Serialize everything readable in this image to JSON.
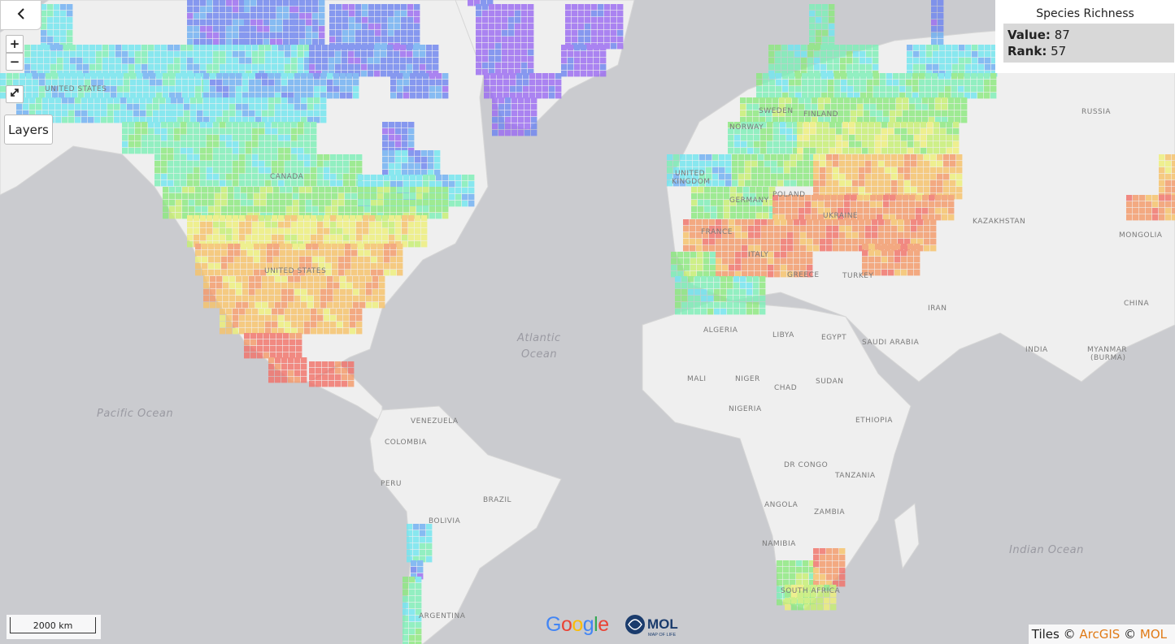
{
  "controls": {
    "back_icon": "chevron-left-icon",
    "zoom_in_label": "+",
    "zoom_out_label": "−",
    "fullscreen_icon": "expand-icon",
    "layers_label": "Layers"
  },
  "info": {
    "title": "Species Richness",
    "value_label": "Value:",
    "value": "87",
    "rank_label": "Rank:",
    "rank": "57"
  },
  "scale_label": "2000 km",
  "attribution": {
    "prefix": "Tiles ©",
    "arcgis": "ArcGIS",
    "sep": "©",
    "mol": "MOL"
  },
  "logos": {
    "google": "Google",
    "mol_big": "MOL",
    "mol_small": "MAP OF LIFE"
  },
  "map_labels": {
    "us_north": "UNITED STATES",
    "canada": "CANADA",
    "us": "UNITED STATES",
    "atlantic1": "Atlantic",
    "atlantic2": "Ocean",
    "pacific": "Pacific Ocean",
    "indian": "Indian Ocean",
    "russia": "RUSSIA",
    "sweden": "SWEDEN",
    "finland": "FINLAND",
    "norway": "NORWAY",
    "uk1": "UNITED",
    "uk2": "KINGDOM",
    "germany": "GERMANY",
    "poland": "POLAND",
    "ukraine": "UKRAINE",
    "france": "FRANCE",
    "italy": "ITALY",
    "greece": "GREECE",
    "turkey": "TURKEY",
    "kazakhstan": "KAZAKHSTAN",
    "mongolia": "MONGOLIA",
    "china": "CHINA",
    "iran": "IRAN",
    "india": "INDIA",
    "myanmar1": "MYANMAR",
    "myanmar2": "(BURMA)",
    "algeria": "ALGERIA",
    "libya": "LIBYA",
    "egypt": "EGYPT",
    "saudi": "SAUDI ARABIA",
    "mali": "MALI",
    "niger": "NIGER",
    "chad": "CHAD",
    "sudan": "SUDAN",
    "nigeria": "NIGERIA",
    "ethiopia": "ETHIOPIA",
    "drc": "DR CONGO",
    "tanzania": "TANZANIA",
    "angola": "ANGOLA",
    "zambia": "ZAMBIA",
    "namibia": "NAMIBIA",
    "south_africa": "SOUTH AFRICA",
    "venezuela": "VENEZUELA",
    "colombia": "COLOMBIA",
    "peru": "PERU",
    "brazil": "BRAZIL",
    "bolivia": "BOLIVIA",
    "argentina": "ARGENTINA"
  },
  "colors": {
    "ocean": "#cacbcf",
    "land": "#efefef",
    "accent": "#e07a16"
  }
}
